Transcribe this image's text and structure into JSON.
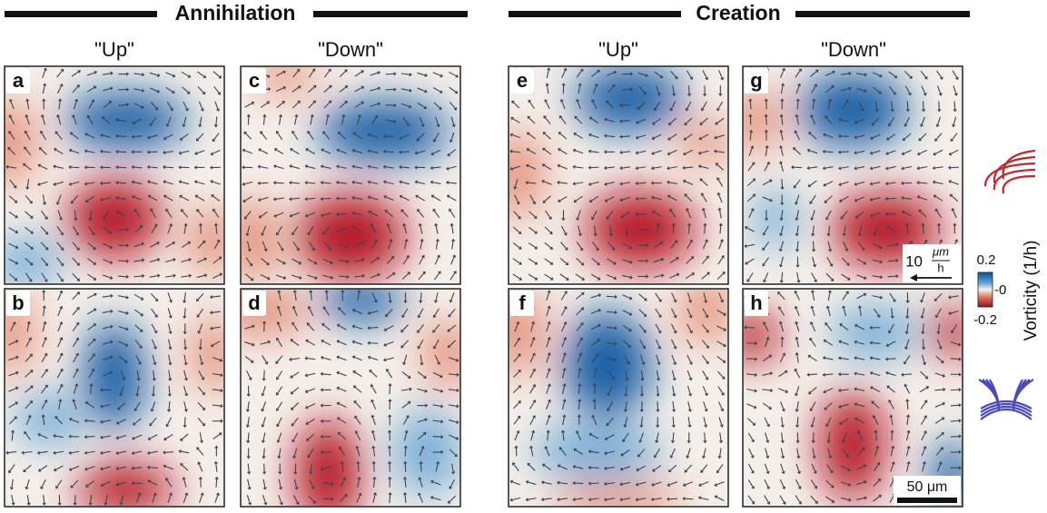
{
  "headers": [
    {
      "title": "Annihilation"
    },
    {
      "title": "Creation"
    }
  ],
  "columns": [
    "\"Up\"",
    "\"Down\"",
    "\"Up\"",
    "\"Down\""
  ],
  "panels": [
    {
      "label": "a"
    },
    {
      "label": "b"
    },
    {
      "label": "c"
    },
    {
      "label": "d"
    },
    {
      "label": "e"
    },
    {
      "label": "f"
    },
    {
      "label": "g"
    },
    {
      "label": "h"
    }
  ],
  "colorbar": {
    "label": "Vorticity (1/h)",
    "ticks": [
      "0.2",
      "-0",
      "-0.2"
    ]
  },
  "velocity_scale": {
    "value": "10",
    "unit_top": "μm",
    "unit_bottom": "h"
  },
  "length_scale": {
    "label": "50 μm"
  }
}
